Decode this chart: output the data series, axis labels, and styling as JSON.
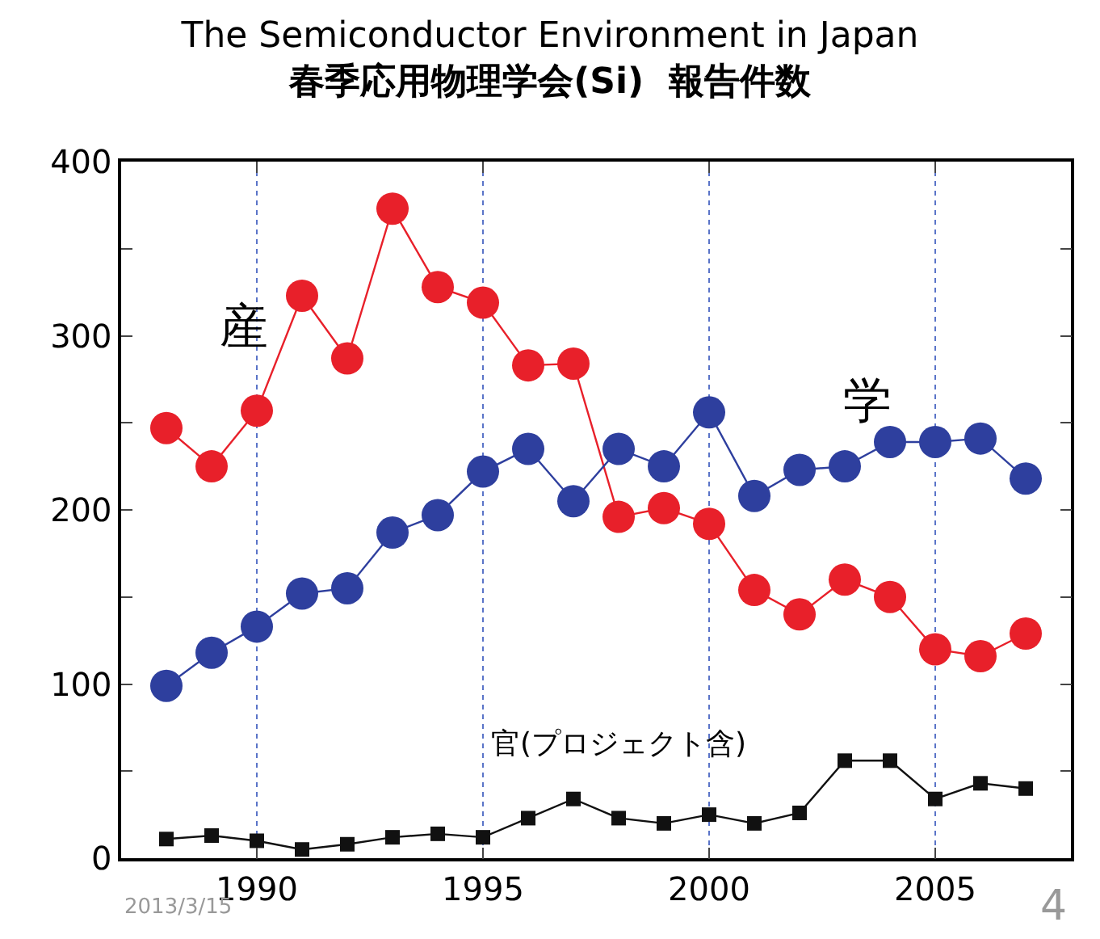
{
  "chart_data": {
    "type": "line",
    "title": "The Semiconductor Environment in Japan",
    "subtitle": "春季応用物理学会(Si)  報告件数",
    "x": [
      1988,
      1989,
      1990,
      1991,
      1992,
      1993,
      1994,
      1995,
      1996,
      1997,
      1998,
      1999,
      2000,
      2001,
      2002,
      2003,
      2004,
      2005,
      2006,
      2007
    ],
    "series": [
      {
        "name": "産",
        "color": "#e8202a",
        "marker": "circle",
        "values": [
          247,
          225,
          257,
          323,
          287,
          373,
          328,
          319,
          283,
          284,
          196,
          201,
          192,
          154,
          140,
          160,
          150,
          120,
          116,
          129
        ]
      },
      {
        "name": "学",
        "color": "#2e3f9e",
        "marker": "circle",
        "values": [
          99,
          118,
          133,
          152,
          155,
          187,
          197,
          222,
          235,
          205,
          235,
          225,
          256,
          208,
          223,
          225,
          239,
          239,
          241,
          218
        ]
      },
      {
        "name": "官(プロジェクト含)",
        "color": "#111111",
        "marker": "square",
        "values": [
          11,
          13,
          10,
          5,
          8,
          12,
          14,
          12,
          23,
          34,
          23,
          20,
          25,
          20,
          26,
          56,
          56,
          34,
          43,
          40
        ]
      }
    ],
    "xlim": [
      1987,
      2008
    ],
    "xticks": [
      1990,
      1995,
      2000,
      2005
    ],
    "ylim": [
      0,
      400
    ],
    "yticks": [
      0,
      {
        "value": 50,
        "label": null
      },
      100,
      {
        "value": 150,
        "label": null
      },
      200,
      {
        "value": 250,
        "label": null
      },
      300,
      {
        "value": 350,
        "label": null
      },
      400
    ],
    "grid": "x",
    "legend": false,
    "line_style": "solid",
    "annotations": [
      "2013/3/15",
      "4"
    ]
  }
}
